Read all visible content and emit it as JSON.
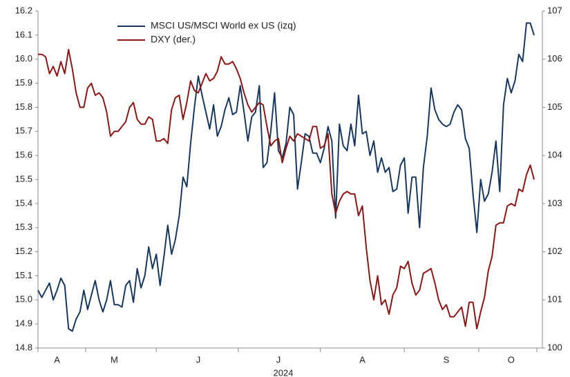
{
  "chart_data": {
    "type": "line",
    "xlabel": "2024",
    "categories": [
      null,
      null,
      null,
      null,
      null,
      "A",
      null,
      null,
      null,
      null,
      null,
      null,
      null,
      null,
      null,
      null,
      null,
      null,
      null,
      null,
      "M",
      null,
      null,
      null,
      null,
      null,
      null,
      null,
      null,
      null,
      null,
      null,
      null,
      null,
      null,
      null,
      null,
      null,
      null,
      null,
      null,
      null,
      "J",
      null,
      null,
      null,
      null,
      null,
      null,
      null,
      null,
      null,
      null,
      null,
      null,
      null,
      null,
      null,
      null,
      null,
      null,
      null,
      null,
      "J",
      null,
      null,
      null,
      null,
      null,
      null,
      null,
      null,
      null,
      null,
      null,
      null,
      null,
      null,
      null,
      null,
      null,
      null,
      null,
      null,
      null,
      "A",
      null,
      null,
      null,
      null,
      null,
      null,
      null,
      null,
      null,
      null,
      null,
      null,
      null,
      null,
      null,
      null,
      null,
      null,
      null,
      null,
      null,
      "S",
      null,
      null,
      null,
      null,
      null,
      null,
      null,
      null,
      null,
      null,
      null,
      null,
      null,
      null,
      null,
      null,
      "O",
      null,
      null,
      null,
      null,
      null,
      null
    ],
    "series": [
      {
        "name": "MSCI US/MSCI World ex US (izq)",
        "color": "#17375e",
        "values": [
          15.04,
          15.01,
          15.04,
          15.07,
          15.0,
          15.04,
          15.09,
          15.06,
          14.88,
          14.87,
          14.92,
          14.95,
          15.04,
          14.96,
          15.02,
          15.08,
          15.0,
          14.95,
          15.0,
          15.08,
          14.98,
          14.98,
          14.97,
          15.06,
          15.08,
          14.99,
          15.13,
          15.05,
          15.1,
          15.22,
          15.13,
          15.19,
          15.06,
          15.18,
          15.31,
          15.19,
          15.25,
          15.35,
          15.51,
          15.47,
          15.65,
          15.8,
          15.93,
          15.85,
          15.78,
          15.71,
          15.81,
          15.68,
          15.72,
          15.79,
          15.84,
          15.77,
          15.78,
          15.89,
          15.78,
          15.66,
          15.76,
          15.78,
          15.89,
          15.55,
          15.57,
          15.7,
          15.86,
          15.62,
          15.59,
          15.65,
          15.8,
          15.77,
          15.46,
          15.57,
          15.69,
          15.68,
          15.61,
          15.61,
          15.57,
          15.63,
          15.72,
          15.66,
          15.34,
          15.73,
          15.64,
          15.62,
          15.73,
          15.64,
          15.85,
          15.69,
          15.7,
          15.6,
          15.66,
          15.53,
          15.59,
          15.53,
          15.55,
          15.45,
          15.46,
          15.56,
          15.59,
          15.36,
          15.51,
          15.51,
          15.3,
          15.55,
          15.68,
          15.88,
          15.79,
          15.75,
          15.73,
          15.72,
          15.73,
          15.78,
          15.81,
          15.79,
          15.67,
          15.63,
          15.44,
          15.28,
          15.5,
          15.41,
          15.44,
          15.53,
          15.66,
          15.45,
          15.81,
          15.92,
          15.86,
          15.91,
          16.02,
          15.99,
          16.15,
          16.15,
          16.1
        ]
      },
      {
        "name": "DXY (der.)",
        "color": "#8c1515",
        "axis": "y2",
        "values": [
          106.1,
          106.1,
          106.05,
          105.7,
          105.85,
          105.65,
          105.95,
          105.7,
          106.2,
          105.8,
          105.3,
          105.0,
          105.0,
          105.4,
          105.5,
          105.25,
          105.3,
          105.2,
          104.9,
          104.4,
          104.5,
          104.5,
          104.6,
          104.7,
          105.0,
          105.1,
          104.75,
          104.65,
          104.65,
          104.8,
          104.75,
          104.3,
          104.3,
          104.35,
          104.25,
          104.95,
          105.2,
          105.25,
          104.75,
          105.1,
          105.55,
          105.35,
          105.3,
          105.5,
          105.7,
          105.55,
          105.6,
          105.75,
          106.05,
          105.9,
          105.9,
          105.95,
          105.8,
          105.6,
          105.3,
          105.05,
          104.9,
          105.0,
          105.1,
          105.05,
          104.6,
          104.2,
          104.3,
          104.35,
          103.85,
          104.15,
          104.4,
          104.3,
          104.45,
          104.4,
          104.35,
          104.3,
          104.6,
          104.6,
          104.15,
          104.2,
          104.45,
          103.2,
          102.8,
          103.05,
          103.2,
          103.25,
          103.2,
          103.2,
          102.75,
          102.95,
          102.1,
          101.4,
          101.0,
          101.5,
          100.9,
          101.0,
          100.7,
          101.1,
          101.25,
          101.7,
          101.65,
          101.8,
          101.35,
          101.1,
          101.2,
          101.55,
          101.6,
          101.65,
          101.35,
          101.0,
          100.8,
          100.9,
          100.65,
          100.65,
          100.75,
          100.85,
          100.45,
          100.95,
          100.95,
          100.4,
          100.75,
          101.05,
          101.6,
          101.9,
          102.55,
          102.6,
          102.6,
          102.95,
          103.0,
          102.95,
          103.3,
          103.25,
          103.6,
          103.8,
          103.5
        ]
      }
    ],
    "ylim": [
      14.8,
      16.2
    ],
    "yticks": [
      14.8,
      14.9,
      {
        "value": 15,
        "label": "15.0"
      },
      15.1,
      15.2,
      15.3,
      15.4,
      15.5,
      15.6,
      15.7,
      15.8,
      15.9,
      {
        "value": 16,
        "label": "16.0"
      },
      16.1,
      16.2
    ],
    "y2lim": [
      100,
      107
    ],
    "y2ticks": [
      100,
      101,
      102,
      103,
      104,
      105,
      106,
      107
    ],
    "grid": false
  }
}
